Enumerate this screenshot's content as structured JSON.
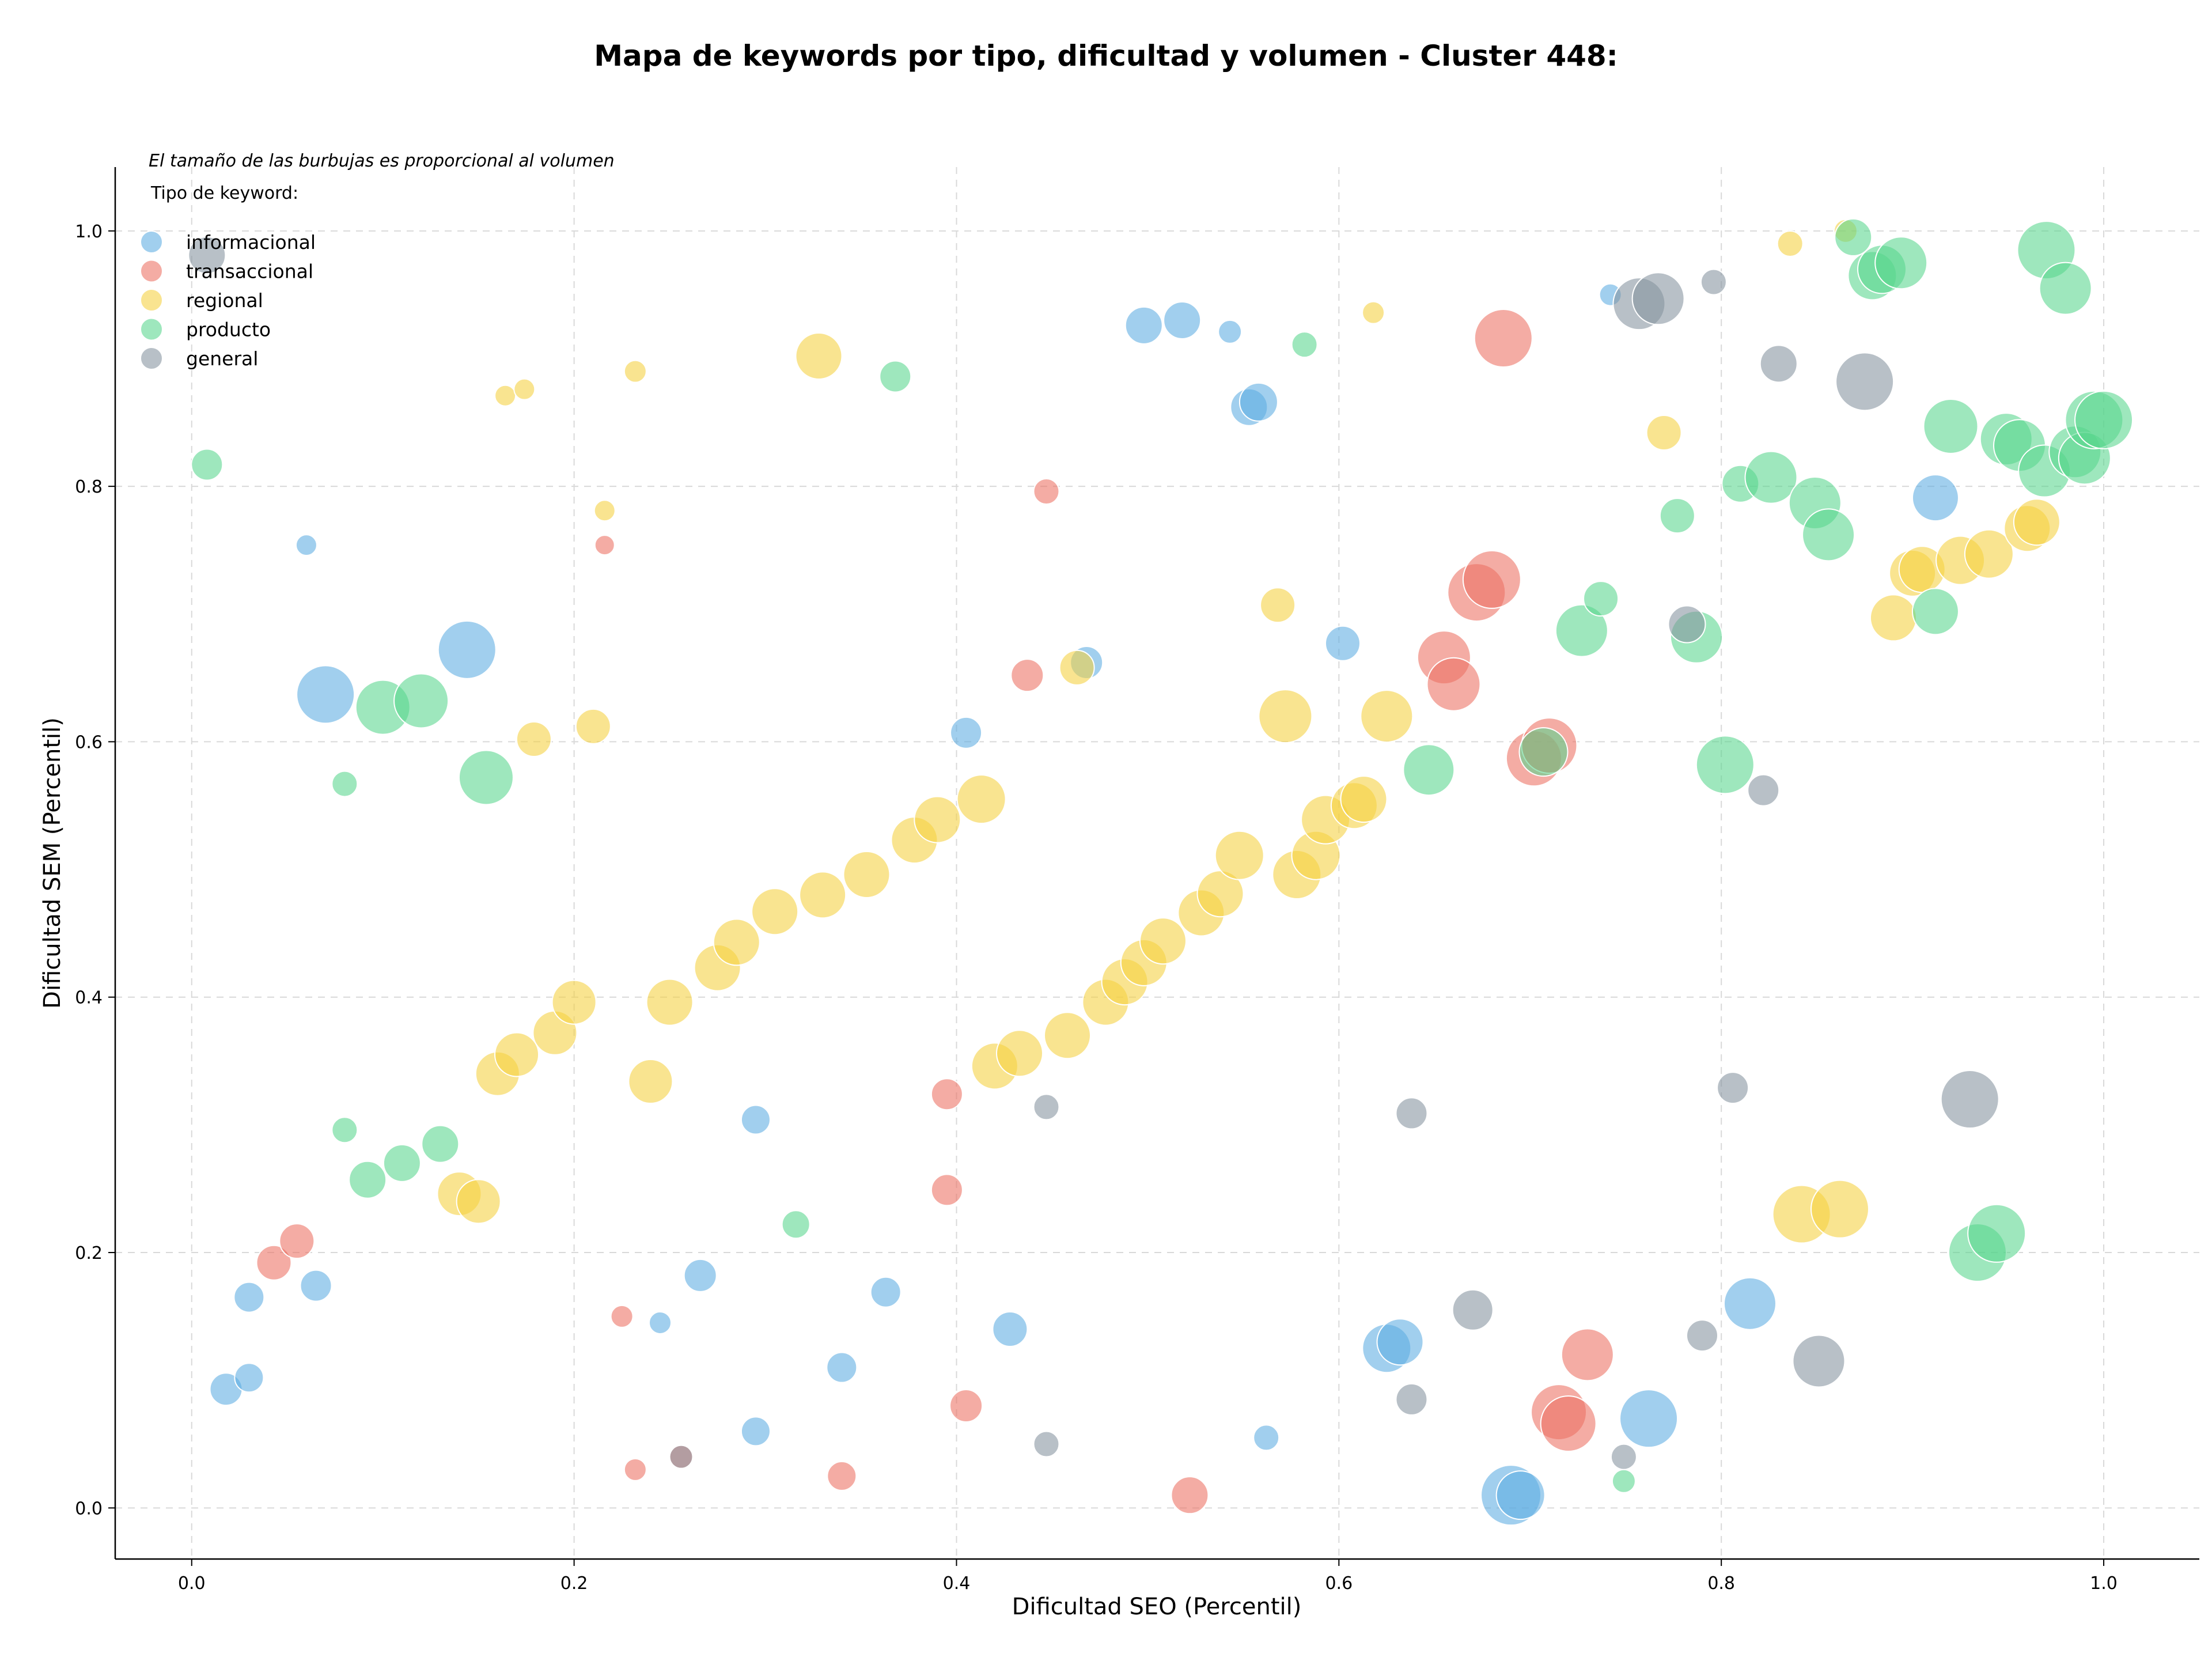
{
  "chart_data": {
    "type": "scatter",
    "title": "Mapa de keywords por tipo, dificultad y volumen - Cluster 448:",
    "xlabel": "Dificultad SEO (Percentil)",
    "ylabel": "Dificultad SEM (Percentil)",
    "xlim": [
      -0.04,
      1.05
    ],
    "ylim": [
      -0.04,
      1.05
    ],
    "xticks": [
      "0.0",
      "0.2",
      "0.4",
      "0.6",
      "0.8",
      "1.0"
    ],
    "yticks": [
      "0.0",
      "0.2",
      "0.4",
      "0.6",
      "0.8",
      "1.0"
    ],
    "grid": true,
    "note": "El tamaño de las burbujas es proporcional al volumen",
    "legend": {
      "title": "Tipo de keyword:",
      "position": "top-left"
    },
    "series": [
      {
        "name": "informacional",
        "color": "#5DADE2",
        "points": [
          [
            0.07,
            0.637,
            50
          ],
          [
            0.144,
            0.672,
            50
          ],
          [
            0.06,
            0.754,
            18
          ],
          [
            0.03,
            0.165,
            26
          ],
          [
            0.065,
            0.174,
            27
          ],
          [
            0.018,
            0.093,
            28
          ],
          [
            0.03,
            0.102,
            25
          ],
          [
            0.266,
            0.182,
            28
          ],
          [
            0.295,
            0.304,
            25
          ],
          [
            0.363,
            0.169,
            26
          ],
          [
            0.245,
            0.145,
            19
          ],
          [
            0.34,
            0.11,
            26
          ],
          [
            0.295,
            0.06,
            25
          ],
          [
            0.428,
            0.14,
            30
          ],
          [
            0.405,
            0.607,
            27
          ],
          [
            0.468,
            0.662,
            28
          ],
          [
            0.498,
            0.926,
            32
          ],
          [
            0.518,
            0.93,
            32
          ],
          [
            0.543,
            0.921,
            20
          ],
          [
            0.553,
            0.862,
            32
          ],
          [
            0.558,
            0.866,
            33
          ],
          [
            0.602,
            0.677,
            30
          ],
          [
            0.562,
            0.055,
            22
          ],
          [
            0.625,
            0.125,
            42
          ],
          [
            0.632,
            0.13,
            40
          ],
          [
            0.69,
            0.01,
            52
          ],
          [
            0.695,
            0.01,
            42
          ],
          [
            0.762,
            0.07,
            50
          ],
          [
            0.815,
            0.16,
            45
          ],
          [
            0.912,
            0.791,
            40
          ],
          [
            0.742,
            0.95,
            19
          ]
        ]
      },
      {
        "name": "transaccional",
        "color": "#EC7063",
        "points": [
          [
            0.043,
            0.192,
            30
          ],
          [
            0.055,
            0.209,
            30
          ],
          [
            0.216,
            0.754,
            17
          ],
          [
            0.225,
            0.15,
            19
          ],
          [
            0.232,
            0.03,
            19
          ],
          [
            0.256,
            0.04,
            20
          ],
          [
            0.34,
            0.025,
            25
          ],
          [
            0.395,
            0.324,
            27
          ],
          [
            0.395,
            0.249,
            27
          ],
          [
            0.405,
            0.08,
            28
          ],
          [
            0.437,
            0.652,
            28
          ],
          [
            0.447,
            0.796,
            22
          ],
          [
            0.522,
            0.01,
            32
          ],
          [
            0.686,
            0.916,
            50
          ],
          [
            0.655,
            0.666,
            46
          ],
          [
            0.66,
            0.645,
            46
          ],
          [
            0.672,
            0.717,
            50
          ],
          [
            0.68,
            0.727,
            50
          ],
          [
            0.702,
            0.587,
            48
          ],
          [
            0.71,
            0.597,
            48
          ],
          [
            0.715,
            0.075,
            48
          ],
          [
            0.72,
            0.066,
            48
          ],
          [
            0.73,
            0.12,
            45
          ]
        ]
      },
      {
        "name": "regional",
        "color": "#F4D03F",
        "points": [
          [
            0.164,
            0.871,
            18
          ],
          [
            0.174,
            0.876,
            18
          ],
          [
            0.232,
            0.89,
            19
          ],
          [
            0.216,
            0.781,
            18
          ],
          [
            0.179,
            0.602,
            30
          ],
          [
            0.21,
            0.612,
            30
          ],
          [
            0.328,
            0.902,
            40
          ],
          [
            0.14,
            0.246,
            38
          ],
          [
            0.15,
            0.24,
            38
          ],
          [
            0.16,
            0.34,
            38
          ],
          [
            0.17,
            0.355,
            38
          ],
          [
            0.19,
            0.372,
            38
          ],
          [
            0.2,
            0.396,
            38
          ],
          [
            0.24,
            0.334,
            38
          ],
          [
            0.25,
            0.396,
            40
          ],
          [
            0.275,
            0.423,
            40
          ],
          [
            0.285,
            0.443,
            40
          ],
          [
            0.305,
            0.467,
            40
          ],
          [
            0.33,
            0.48,
            40
          ],
          [
            0.353,
            0.496,
            40
          ],
          [
            0.378,
            0.523,
            40
          ],
          [
            0.39,
            0.539,
            40
          ],
          [
            0.413,
            0.555,
            42
          ],
          [
            0.42,
            0.346,
            40
          ],
          [
            0.433,
            0.356,
            40
          ],
          [
            0.458,
            0.37,
            40
          ],
          [
            0.463,
            0.658,
            30
          ],
          [
            0.478,
            0.396,
            40
          ],
          [
            0.488,
            0.412,
            40
          ],
          [
            0.498,
            0.427,
            40
          ],
          [
            0.508,
            0.444,
            40
          ],
          [
            0.528,
            0.466,
            40
          ],
          [
            0.538,
            0.481,
            40
          ],
          [
            0.548,
            0.511,
            42
          ],
          [
            0.568,
            0.707,
            30
          ],
          [
            0.572,
            0.62,
            46
          ],
          [
            0.578,
            0.496,
            42
          ],
          [
            0.588,
            0.511,
            42
          ],
          [
            0.593,
            0.539,
            42
          ],
          [
            0.608,
            0.55,
            40
          ],
          [
            0.613,
            0.555,
            40
          ],
          [
            0.618,
            0.936,
            19
          ],
          [
            0.625,
            0.62,
            45
          ],
          [
            0.77,
            0.842,
            30
          ],
          [
            0.836,
            0.99,
            22
          ],
          [
            0.865,
            1.0,
            20
          ],
          [
            0.842,
            0.23,
            50
          ],
          [
            0.862,
            0.234,
            50
          ],
          [
            0.89,
            0.697,
            40
          ],
          [
            0.9,
            0.732,
            40
          ],
          [
            0.905,
            0.735,
            40
          ],
          [
            0.925,
            0.742,
            42
          ],
          [
            0.94,
            0.747,
            42
          ],
          [
            0.96,
            0.767,
            40
          ],
          [
            0.965,
            0.772,
            40
          ]
        ]
      },
      {
        "name": "producto",
        "color": "#58D68D",
        "points": [
          [
            0.008,
            0.817,
            27
          ],
          [
            0.08,
            0.567,
            22
          ],
          [
            0.08,
            0.296,
            22
          ],
          [
            0.1,
            0.627,
            47
          ],
          [
            0.12,
            0.632,
            47
          ],
          [
            0.154,
            0.572,
            47
          ],
          [
            0.092,
            0.257,
            32
          ],
          [
            0.11,
            0.27,
            32
          ],
          [
            0.13,
            0.285,
            32
          ],
          [
            0.316,
            0.222,
            24
          ],
          [
            0.368,
            0.886,
            27
          ],
          [
            0.582,
            0.911,
            22
          ],
          [
            0.647,
            0.578,
            44
          ],
          [
            0.707,
            0.592,
            42
          ],
          [
            0.727,
            0.687,
            45
          ],
          [
            0.737,
            0.712,
            30
          ],
          [
            0.777,
            0.777,
            30
          ],
          [
            0.787,
            0.682,
            45
          ],
          [
            0.802,
            0.582,
            50
          ],
          [
            0.81,
            0.802,
            32
          ],
          [
            0.826,
            0.807,
            45
          ],
          [
            0.849,
            0.787,
            45
          ],
          [
            0.856,
            0.762,
            45
          ],
          [
            0.869,
            0.995,
            32
          ],
          [
            0.879,
            0.965,
            42
          ],
          [
            0.884,
            0.97,
            42
          ],
          [
            0.894,
            0.975,
            45
          ],
          [
            0.912,
            0.702,
            40
          ],
          [
            0.92,
            0.847,
            47
          ],
          [
            0.934,
            0.2,
            50
          ],
          [
            0.944,
            0.215,
            50
          ],
          [
            0.949,
            0.837,
            45
          ],
          [
            0.956,
            0.832,
            45
          ],
          [
            0.969,
            0.812,
            45
          ],
          [
            0.97,
            0.985,
            50
          ],
          [
            0.98,
            0.955,
            45
          ],
          [
            0.985,
            0.827,
            45
          ],
          [
            0.99,
            0.822,
            45
          ],
          [
            0.995,
            0.852,
            50
          ],
          [
            1.0,
            0.852,
            50
          ],
          [
            0.749,
            0.021,
            20
          ]
        ]
      },
      {
        "name": "general",
        "color": "#85929E",
        "points": [
          [
            0.008,
            0.981,
            32
          ],
          [
            0.256,
            0.04,
            20
          ],
          [
            0.447,
            0.314,
            22
          ],
          [
            0.447,
            0.05,
            22
          ],
          [
            0.638,
            0.309,
            27
          ],
          [
            0.638,
            0.085,
            27
          ],
          [
            0.67,
            0.155,
            35
          ],
          [
            0.749,
            0.04,
            22
          ],
          [
            0.757,
            0.943,
            45
          ],
          [
            0.767,
            0.947,
            45
          ],
          [
            0.782,
            0.692,
            32
          ],
          [
            0.79,
            0.135,
            27
          ],
          [
            0.796,
            0.96,
            22
          ],
          [
            0.806,
            0.329,
            27
          ],
          [
            0.822,
            0.562,
            27
          ],
          [
            0.83,
            0.896,
            32
          ],
          [
            0.851,
            0.115,
            45
          ],
          [
            0.875,
            0.882,
            50
          ],
          [
            0.93,
            0.32,
            50
          ]
        ]
      }
    ]
  }
}
